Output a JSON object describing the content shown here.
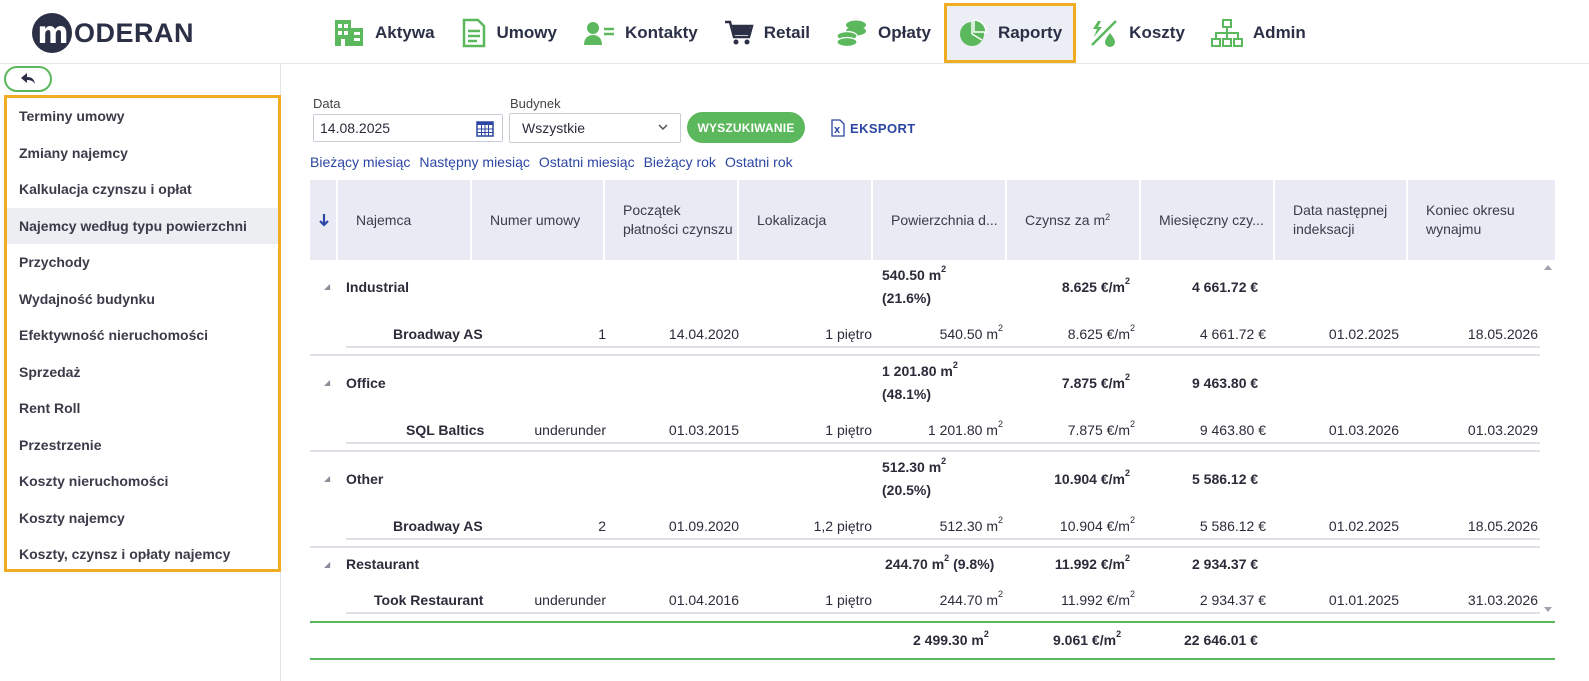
{
  "brand": {
    "logo_letter": "m",
    "logo_text": "ODERAN"
  },
  "nav": [
    {
      "label": "Aktywa",
      "icon": "building-icon"
    },
    {
      "label": "Umowy",
      "icon": "document-icon"
    },
    {
      "label": "Kontakty",
      "icon": "contacts-icon"
    },
    {
      "label": "Retail",
      "icon": "cart-icon"
    },
    {
      "label": "Opłaty",
      "icon": "coins-icon"
    },
    {
      "label": "Raporty",
      "icon": "pie-chart-icon",
      "active": true
    },
    {
      "label": "Koszty",
      "icon": "costs-icon"
    },
    {
      "label": "Admin",
      "icon": "org-chart-icon"
    }
  ],
  "sidebar": {
    "items": [
      {
        "label": "Terminy umowy"
      },
      {
        "label": "Zmiany najemcy"
      },
      {
        "label": "Kalkulacja czynszu i opłat"
      },
      {
        "label": "Najemcy według typu powierzchni",
        "active": true
      },
      {
        "label": "Przychody"
      },
      {
        "label": "Wydajność budynku"
      },
      {
        "label": "Efektywność nieruchomości"
      },
      {
        "label": "Sprzedaż"
      },
      {
        "label": "Rent Roll"
      },
      {
        "label": "Przestrzenie"
      },
      {
        "label": "Koszty nieruchomości"
      },
      {
        "label": "Koszty najemcy"
      },
      {
        "label": "Koszty, czynsz i opłaty najemcy"
      }
    ]
  },
  "filters": {
    "date_label": "Data",
    "date_value": "14.08.2025",
    "building_label": "Budynek",
    "building_value": "Wszystkie",
    "search_label": "WYSZUKIWANIE",
    "export_label": "EKSPORT",
    "quick_links": [
      "Bieżący miesiąc",
      "Następny miesiąc",
      "Ostatni miesiąc",
      "Bieżący rok",
      "Ostatni rok"
    ]
  },
  "table": {
    "columns": {
      "tenant": "Najemca",
      "contract": "Numer umowy",
      "payment_start": "Początek płatności czynszu",
      "location": "Lokalizacja",
      "area": "Powierzchnia d...",
      "rent_m2": "Czynsz za m",
      "monthly_rent": "Miesięczny czy...",
      "next_index": "Data następnej indeksacji",
      "lease_end": "Koniec okresu wynajmu"
    },
    "groups": [
      {
        "name": "Industrial",
        "area": "540.50 m",
        "share": "(21.6%)",
        "rent_m2": "8.625 €/m",
        "monthly": "4 661.72 €",
        "rows": [
          {
            "tenant": "Broadway AS",
            "contract": "1",
            "start": "14.04.2020",
            "location": "1 piętro",
            "area": "540.50 m",
            "rent_m2": "8.625 €/m",
            "monthly": "4 661.72 €",
            "next_index": "01.02.2025",
            "lease_end": "18.05.2026"
          }
        ]
      },
      {
        "name": "Office",
        "area": "1 201.80 m",
        "share": "(48.1%)",
        "rent_m2": "7.875 €/m",
        "monthly": "9 463.80 €",
        "rows": [
          {
            "tenant": "SQL Baltics",
            "contract": "underunder",
            "start": "01.03.2015",
            "location": "1 piętro",
            "area": "1 201.80 m",
            "rent_m2": "7.875 €/m",
            "monthly": "9 463.80 €",
            "next_index": "01.03.2026",
            "lease_end": "01.03.2029"
          }
        ]
      },
      {
        "name": "Other",
        "area": "512.30 m",
        "share": "(20.5%)",
        "rent_m2": "10.904 €/m",
        "monthly": "5 586.12 €",
        "rows": [
          {
            "tenant": "Broadway AS",
            "contract": "2",
            "start": "01.09.2020",
            "location": "1,2 piętro",
            "area": "512.30 m",
            "rent_m2": "10.904 €/m",
            "monthly": "5 586.12 €",
            "next_index": "01.02.2025",
            "lease_end": "18.05.2026"
          }
        ]
      },
      {
        "name": "Restaurant",
        "area": "244.70 m",
        "share": "(9.8%)",
        "rent_m2": "11.992 €/m",
        "monthly": "2 934.37 €",
        "rows": [
          {
            "tenant": "Took Restaurant",
            "contract": "underunder",
            "start": "01.04.2016",
            "location": "1 piętro",
            "area": "244.70 m",
            "rent_m2": "11.992 €/m",
            "monthly": "2 934.37 €",
            "next_index": "01.01.2025",
            "lease_end": "31.03.2026"
          }
        ]
      }
    ],
    "totals": {
      "area": "2 499.30 m",
      "rent_m2": "9.061 €/m",
      "monthly": "22 646.01 €"
    },
    "sup": "2"
  },
  "colors": {
    "accent_green": "#5cb85c",
    "highlight_orange": "#f0ad22",
    "link_blue": "#2b46a3",
    "brand_dark": "#2c3047"
  }
}
